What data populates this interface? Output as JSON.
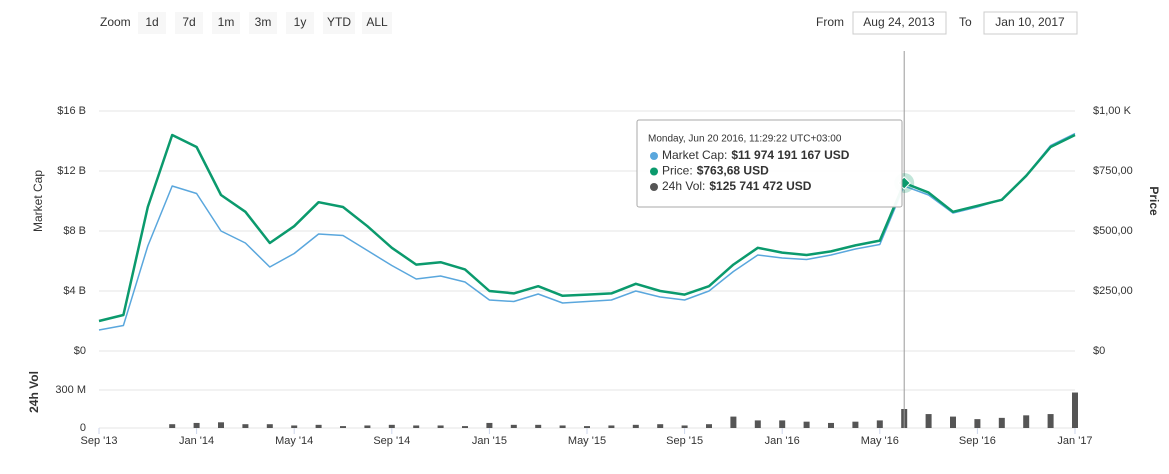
{
  "chart_data": {
    "type": "line",
    "range_selector": {
      "label": "Zoom",
      "buttons": [
        "1d",
        "7d",
        "1m",
        "3m",
        "1y",
        "YTD",
        "ALL"
      ]
    },
    "date_range": {
      "from_label": "From",
      "from": "Aug 24, 2013",
      "to_label": "To",
      "to": "Jan 10, 2017"
    },
    "categories": [
      "Sep '13",
      null,
      null,
      null,
      "Jan '14",
      null,
      null,
      null,
      "May '14",
      null,
      null,
      null,
      "Sep '14",
      null,
      null,
      null,
      "Jan '15",
      null,
      null,
      null,
      "May '15",
      null,
      null,
      null,
      "Sep '15",
      null,
      null,
      null,
      "Jan '16",
      null,
      null,
      null,
      "May '16",
      null,
      null,
      null,
      "Sep '16",
      null,
      null,
      null,
      "Jan '17"
    ],
    "series": [
      {
        "name": "Market Cap",
        "color": "#5aa7dd",
        "axis": "y",
        "type": "line",
        "values": [
          1400000000,
          1700000000,
          7000000000,
          11000000000,
          10500000000,
          8000000000,
          7200000000,
          5600000000,
          6500000000,
          7800000000,
          7700000000,
          6700000000,
          5700000000,
          4800000000,
          5000000000,
          4600000000,
          3400000000,
          3300000000,
          3800000000,
          3200000000,
          3300000000,
          3400000000,
          4000000000,
          3600000000,
          3400000000,
          4000000000,
          5300000000,
          6400000000,
          6200000000,
          6100000000,
          6400000000,
          6800000000,
          7100000000,
          11000000000,
          10400000000,
          9200000000,
          9600000000,
          10100000000,
          11700000000,
          13700000000,
          14500000000
        ]
      },
      {
        "name": "Price",
        "color": "#0b9a6d",
        "axis": "y2",
        "type": "line",
        "values": [
          125,
          150,
          600,
          900,
          850,
          650,
          580,
          450,
          520,
          620,
          600,
          520,
          430,
          360,
          370,
          340,
          250,
          240,
          270,
          230,
          235,
          240,
          280,
          250,
          235,
          270,
          360,
          430,
          410,
          400,
          415,
          440,
          460,
          700,
          660,
          580,
          605,
          630,
          730,
          850,
          900
        ]
      },
      {
        "name": "24h Vol",
        "color": "#555555",
        "axis": "y3",
        "type": "bar",
        "values": [
          0,
          0,
          0,
          30000000,
          40000000,
          45000000,
          30000000,
          30000000,
          20000000,
          25000000,
          15000000,
          20000000,
          25000000,
          20000000,
          20000000,
          15000000,
          40000000,
          25000000,
          25000000,
          20000000,
          15000000,
          20000000,
          25000000,
          30000000,
          20000000,
          30000000,
          90000000,
          60000000,
          60000000,
          50000000,
          40000000,
          50000000,
          60000000,
          150000000,
          110000000,
          90000000,
          70000000,
          80000000,
          100000000,
          110000000,
          280000000
        ]
      }
    ],
    "ylim": [
      0,
      20000000000
    ],
    "yticks": [
      {
        "value": 0,
        "label": "$0"
      },
      {
        "value": 4000000000,
        "label": "$4 B"
      },
      {
        "value": 8000000000,
        "label": "$8 B"
      },
      {
        "value": 12000000000,
        "label": "$12 B"
      },
      {
        "value": 16000000000,
        "label": "$16 B"
      }
    ],
    "y2lim": [
      0,
      1250
    ],
    "y2ticks": [
      {
        "value": 0,
        "label": "$0"
      },
      {
        "value": 250,
        "label": "$250,00"
      },
      {
        "value": 500,
        "label": "$500,00"
      },
      {
        "value": 750,
        "label": "$750,00"
      },
      {
        "value": 1000,
        "label": "$1,00 K"
      }
    ],
    "y3lim": [
      0,
      540000000
    ],
    "y3ticks": [
      0,
      {
        "value": 300000000,
        "label": "300 M"
      }
    ],
    "grid": true,
    "tooltip": {
      "date": "Monday, Jun 20 2016, 11:29:22 UTC+03:00",
      "items": [
        {
          "label": "Market Cap:",
          "value": "$11 974 191 167 USD"
        },
        {
          "label": "Price:",
          "value": "$763,68 USD"
        },
        {
          "label": "24h Vol:",
          "value": "$125 741 472 USD"
        }
      ]
    }
  }
}
